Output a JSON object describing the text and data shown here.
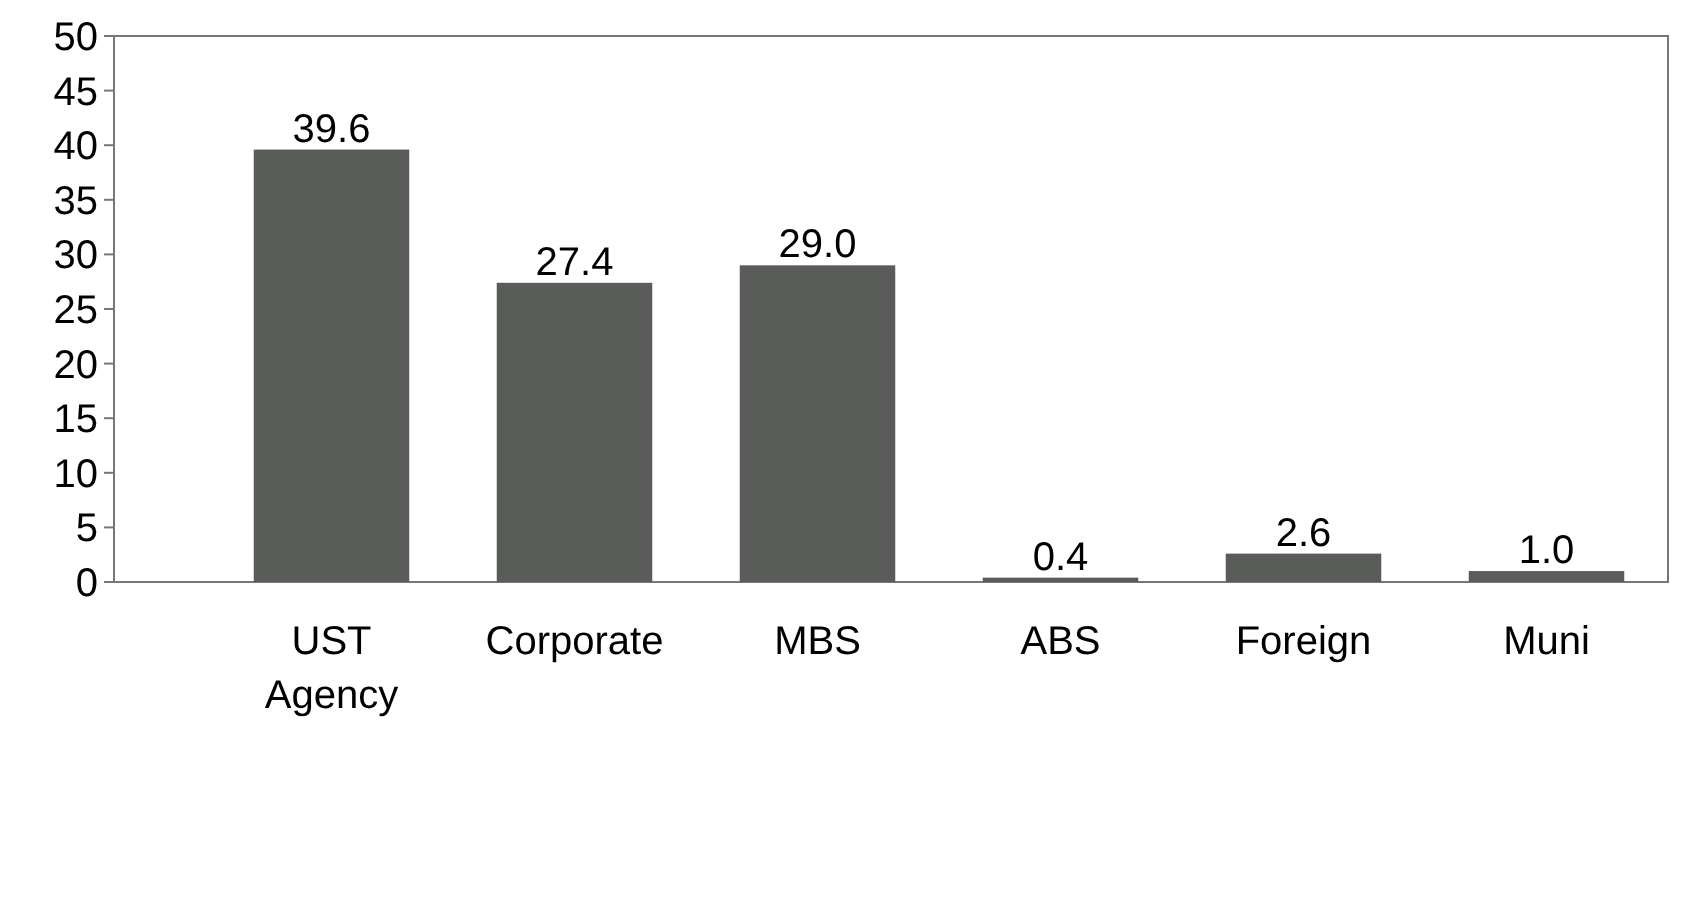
{
  "chart_data": {
    "type": "bar",
    "categories": [
      "UST Agency",
      "Corporate",
      "MBS",
      "ABS",
      "Foreign",
      "Muni"
    ],
    "series": [
      {
        "color": "#5a5c5a",
        "values": [
          39.6,
          27.4,
          29.0,
          0.4,
          2.6,
          1.0
        ],
        "value_labels": [
          "39.6",
          "27.4",
          "29.0",
          "0.4",
          "2.6",
          "1.0"
        ]
      }
    ],
    "ylim": [
      0,
      50
    ],
    "yticks": [
      0,
      5,
      10,
      15,
      20,
      25,
      30,
      35,
      40,
      45,
      50
    ],
    "grid": false
  }
}
